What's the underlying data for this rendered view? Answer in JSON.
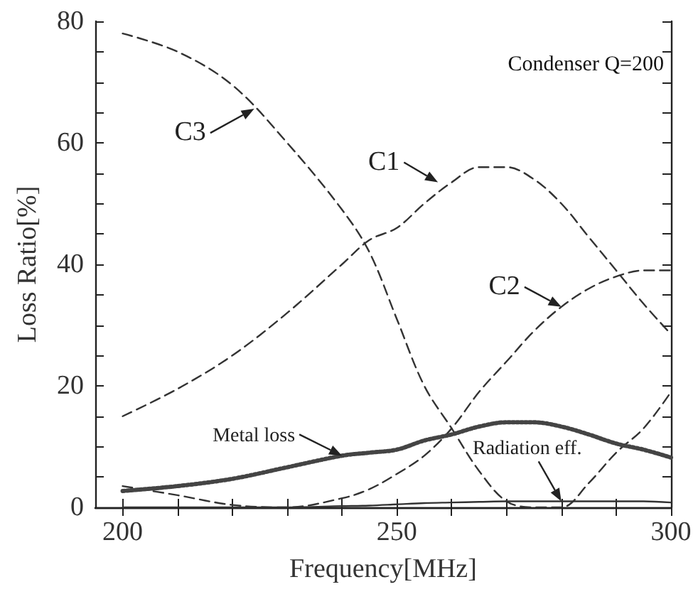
{
  "chart_data": {
    "type": "line",
    "xlabel": "Frequency[MHz]",
    "ylabel": "Loss Ratio[%]",
    "xlim": [
      195,
      300
    ],
    "ylim": [
      0,
      80
    ],
    "xticks": [
      200,
      {
        "value": 210,
        "label": null
      },
      {
        "value": 220,
        "label": null
      },
      {
        "value": 230,
        "label": null
      },
      {
        "value": 240,
        "label": null
      },
      250,
      {
        "value": 260,
        "label": null
      },
      {
        "value": 270,
        "label": null
      },
      {
        "value": 280,
        "label": null
      },
      {
        "value": 290,
        "label": null
      },
      300
    ],
    "yticks": [
      0,
      {
        "value": 5,
        "label": null
      },
      {
        "value": 10,
        "label": null
      },
      {
        "value": 15,
        "label": null
      },
      20,
      {
        "value": 25,
        "label": null
      },
      {
        "value": 30,
        "label": null
      },
      {
        "value": 35,
        "label": null
      },
      40,
      {
        "value": 45,
        "label": null
      },
      {
        "value": 50,
        "label": null
      },
      {
        "value": 55,
        "label": null
      },
      60,
      {
        "value": 65,
        "label": null
      },
      {
        "value": 70,
        "label": null
      },
      {
        "value": 75,
        "label": null
      },
      80
    ],
    "marker": "none",
    "x": [
      200,
      210,
      220,
      230,
      240,
      245,
      250,
      255,
      260,
      265,
      270,
      275,
      280,
      285,
      290,
      295,
      300
    ],
    "series": [
      {
        "color": "#333333",
        "line_style": "dashed",
        "values": [
          15,
          19.5,
          25,
          32,
          40,
          44,
          46,
          50,
          53.5,
          56,
          56,
          54,
          50,
          44.5,
          39,
          33.5,
          28.5
        ]
      },
      {
        "color": "#333333",
        "line_style": "dashed",
        "values": [
          3.5,
          2,
          0.4,
          0,
          1.5,
          3,
          5.5,
          8.5,
          13,
          19,
          24,
          29,
          33,
          36,
          38,
          39,
          39
        ]
      },
      {
        "color": "#333333",
        "line_style": "dashed",
        "values": [
          78,
          75,
          69.5,
          60,
          49,
          42,
          31,
          20,
          13,
          6,
          1,
          0,
          0,
          4,
          9,
          13,
          19
        ]
      },
      {
        "color": "#444444",
        "line_style": "dotted",
        "values": [
          2.7,
          3.5,
          4.7,
          6.6,
          8.5,
          9,
          9.5,
          11,
          12,
          13.3,
          14,
          14,
          13.3,
          12,
          10.5,
          9.5,
          8.2
        ]
      },
      {
        "color": "#333333",
        "line_style": "solid",
        "values": [
          0,
          0,
          0,
          0,
          0.2,
          0.3,
          0.5,
          0.7,
          0.8,
          0.9,
          1,
          1,
          1,
          1,
          1,
          1,
          0.8
        ]
      }
    ],
    "annotations": [
      {
        "text": "C1",
        "x": 257.5,
        "y": 53.5
      },
      {
        "text": "C2",
        "x": 280,
        "y": 33
      },
      {
        "text": "C3",
        "x": 224,
        "y": 65.6
      },
      {
        "text": "Metal loss",
        "x": 240,
        "y": 8.5
      },
      {
        "text": "Radiation eff.",
        "x": 280,
        "y": 1
      },
      "Condenser Q=200"
    ]
  }
}
